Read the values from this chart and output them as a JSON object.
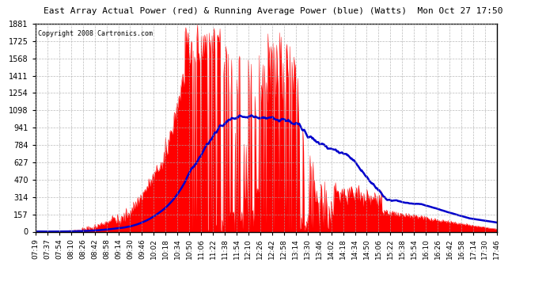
{
  "title": "East Array Actual Power (red) & Running Average Power (blue) (Watts)  Mon Oct 27 17:50",
  "copyright": "Copyright 2008 Cartronics.com",
  "yticks": [
    0.0,
    156.8,
    313.6,
    470.4,
    627.1,
    783.9,
    940.7,
    1097.5,
    1254.3,
    1411.1,
    1567.8,
    1724.6,
    1881.4
  ],
  "ymax": 1881.4,
  "ymin": 0.0,
  "xtick_labels": [
    "07:19",
    "07:37",
    "07:54",
    "08:10",
    "08:26",
    "08:42",
    "08:58",
    "09:14",
    "09:30",
    "09:46",
    "10:02",
    "10:18",
    "10:34",
    "10:50",
    "11:06",
    "11:22",
    "11:38",
    "11:54",
    "12:10",
    "12:26",
    "12:42",
    "12:58",
    "13:14",
    "13:30",
    "13:46",
    "14:02",
    "14:18",
    "14:34",
    "14:50",
    "15:06",
    "15:22",
    "15:38",
    "15:54",
    "16:10",
    "16:26",
    "16:42",
    "16:58",
    "17:14",
    "17:30",
    "17:46"
  ],
  "bg_color": "#ffffff",
  "plot_bg_color": "#ffffff",
  "grid_color": "#aaaaaa",
  "red_color": "#ff0000",
  "blue_color": "#0000cc",
  "title_color": "#000000",
  "copyright_color": "#000000",
  "n_points": 636
}
